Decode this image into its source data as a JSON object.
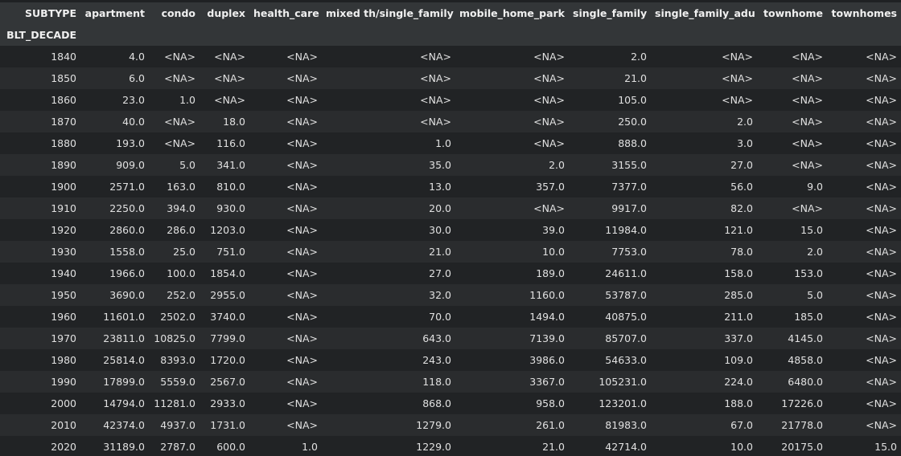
{
  "table": {
    "columns_name": "SUBTYPE",
    "index_name": "BLT_DECADE",
    "columns": [
      "apartment",
      "condo",
      "duplex",
      "health_care",
      "mixed th/single_family",
      "mobile_home_park",
      "single_family",
      "single_family_adu",
      "townhome",
      "townhomes"
    ],
    "rows": [
      {
        "index": "1840",
        "values": [
          "4.0",
          "<NA>",
          "<NA>",
          "<NA>",
          "<NA>",
          "<NA>",
          "2.0",
          "<NA>",
          "<NA>",
          "<NA>"
        ]
      },
      {
        "index": "1850",
        "values": [
          "6.0",
          "<NA>",
          "<NA>",
          "<NA>",
          "<NA>",
          "<NA>",
          "21.0",
          "<NA>",
          "<NA>",
          "<NA>"
        ]
      },
      {
        "index": "1860",
        "values": [
          "23.0",
          "1.0",
          "<NA>",
          "<NA>",
          "<NA>",
          "<NA>",
          "105.0",
          "<NA>",
          "<NA>",
          "<NA>"
        ]
      },
      {
        "index": "1870",
        "values": [
          "40.0",
          "<NA>",
          "18.0",
          "<NA>",
          "<NA>",
          "<NA>",
          "250.0",
          "2.0",
          "<NA>",
          "<NA>"
        ]
      },
      {
        "index": "1880",
        "values": [
          "193.0",
          "<NA>",
          "116.0",
          "<NA>",
          "1.0",
          "<NA>",
          "888.0",
          "3.0",
          "<NA>",
          "<NA>"
        ]
      },
      {
        "index": "1890",
        "values": [
          "909.0",
          "5.0",
          "341.0",
          "<NA>",
          "35.0",
          "2.0",
          "3155.0",
          "27.0",
          "<NA>",
          "<NA>"
        ]
      },
      {
        "index": "1900",
        "values": [
          "2571.0",
          "163.0",
          "810.0",
          "<NA>",
          "13.0",
          "357.0",
          "7377.0",
          "56.0",
          "9.0",
          "<NA>"
        ]
      },
      {
        "index": "1910",
        "values": [
          "2250.0",
          "394.0",
          "930.0",
          "<NA>",
          "20.0",
          "<NA>",
          "9917.0",
          "82.0",
          "<NA>",
          "<NA>"
        ]
      },
      {
        "index": "1920",
        "values": [
          "2860.0",
          "286.0",
          "1203.0",
          "<NA>",
          "30.0",
          "39.0",
          "11984.0",
          "121.0",
          "15.0",
          "<NA>"
        ]
      },
      {
        "index": "1930",
        "values": [
          "1558.0",
          "25.0",
          "751.0",
          "<NA>",
          "21.0",
          "10.0",
          "7753.0",
          "78.0",
          "2.0",
          "<NA>"
        ]
      },
      {
        "index": "1940",
        "values": [
          "1966.0",
          "100.0",
          "1854.0",
          "<NA>",
          "27.0",
          "189.0",
          "24611.0",
          "158.0",
          "153.0",
          "<NA>"
        ]
      },
      {
        "index": "1950",
        "values": [
          "3690.0",
          "252.0",
          "2955.0",
          "<NA>",
          "32.0",
          "1160.0",
          "53787.0",
          "285.0",
          "5.0",
          "<NA>"
        ]
      },
      {
        "index": "1960",
        "values": [
          "11601.0",
          "2502.0",
          "3740.0",
          "<NA>",
          "70.0",
          "1494.0",
          "40875.0",
          "211.0",
          "185.0",
          "<NA>"
        ]
      },
      {
        "index": "1970",
        "values": [
          "23811.0",
          "10825.0",
          "7799.0",
          "<NA>",
          "643.0",
          "7139.0",
          "85707.0",
          "337.0",
          "4145.0",
          "<NA>"
        ]
      },
      {
        "index": "1980",
        "values": [
          "25814.0",
          "8393.0",
          "1720.0",
          "<NA>",
          "243.0",
          "3986.0",
          "54633.0",
          "109.0",
          "4858.0",
          "<NA>"
        ]
      },
      {
        "index": "1990",
        "values": [
          "17899.0",
          "5559.0",
          "2567.0",
          "<NA>",
          "118.0",
          "3367.0",
          "105231.0",
          "224.0",
          "6480.0",
          "<NA>"
        ]
      },
      {
        "index": "2000",
        "values": [
          "14794.0",
          "11281.0",
          "2933.0",
          "<NA>",
          "868.0",
          "958.0",
          "123201.0",
          "188.0",
          "17226.0",
          "<NA>"
        ]
      },
      {
        "index": "2010",
        "values": [
          "42374.0",
          "4937.0",
          "1731.0",
          "<NA>",
          "1279.0",
          "261.0",
          "81983.0",
          "67.0",
          "21778.0",
          "<NA>"
        ]
      },
      {
        "index": "2020",
        "values": [
          "31189.0",
          "2787.0",
          "600.0",
          "1.0",
          "1229.0",
          "21.0",
          "42714.0",
          "10.0",
          "20175.0",
          "15.0"
        ]
      }
    ]
  }
}
